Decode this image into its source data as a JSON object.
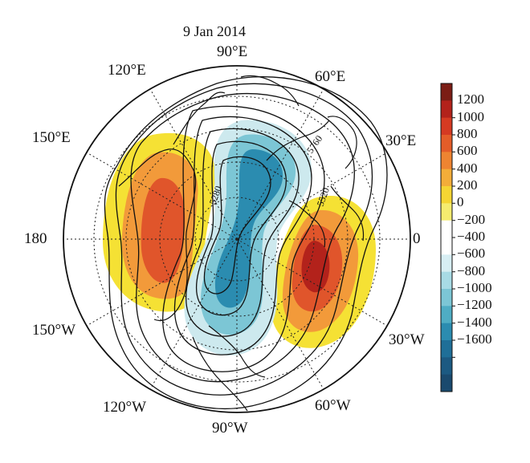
{
  "map": {
    "title": "9 Jan 2014",
    "projection": "north-polar-stereographic",
    "longitude_labels": {
      "top": "90°E",
      "top_right_1": "60°E",
      "top_right_2": "30°E",
      "right": "0",
      "bottom_right_1": "30°W",
      "bottom_right_2": "60°W",
      "bottom": "90°W",
      "bottom_left_1": "120°W",
      "bottom_left_2": "150°W",
      "left": "180",
      "top_left_1": "150°E",
      "top_left_2": "120°E"
    },
    "contour_labels": [
      "5280",
      "5520",
      "5760"
    ],
    "colors": {
      "positive_strong": "#b3221b",
      "positive_mid": "#e0552b",
      "positive_weak": "#f29a3a",
      "positive_light": "#f5e134",
      "negative_light": "#cde9ee",
      "negative_mid": "#7cc6d5",
      "negative_strong": "#2b8cb0"
    }
  },
  "colorbar": {
    "tick_labels": [
      "1200",
      "1000",
      "800",
      "600",
      "400",
      "200",
      "0",
      "−200",
      "−400",
      "−600",
      "−800",
      "−1000",
      "−1200",
      "−1400",
      "−1600"
    ],
    "colors": [
      "#7b1d15",
      "#b3221b",
      "#d53a22",
      "#e45d29",
      "#ee8431",
      "#f3ad39",
      "#f5d533",
      "#f5ec6f",
      "#ffffff",
      "#ffffff",
      "#d7eef3",
      "#a8dbe5",
      "#7cc6d5",
      "#4fadc4",
      "#2b8cb0",
      "#1f6f98",
      "#1c5a82",
      "#1a4a6e"
    ]
  }
}
